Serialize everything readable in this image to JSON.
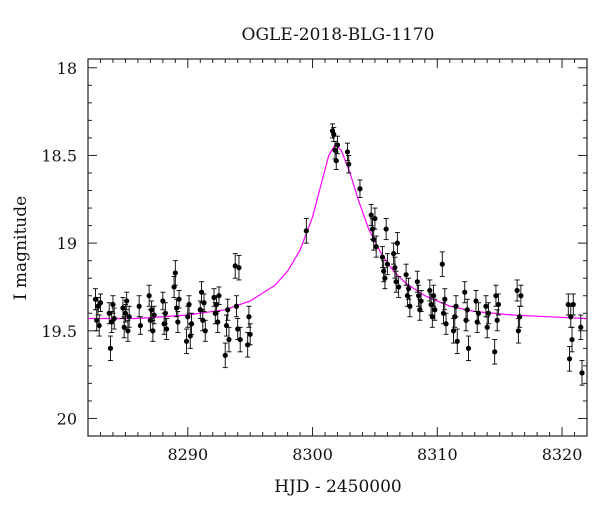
{
  "chart_data": {
    "type": "scatter",
    "title": "OGLE-2018-BLG-1170",
    "xlabel": "HJD - 2450000",
    "ylabel": "I magnitude",
    "xlim": [
      8282,
      8322
    ],
    "ylim": [
      20.1,
      17.95
    ],
    "y_inverted": true,
    "x_ticks": [
      8290,
      8300,
      8310,
      8320
    ],
    "y_ticks": [
      18,
      18.5,
      19,
      19.5,
      20
    ],
    "x_tick_labels": [
      "8290",
      "8300",
      "8310",
      "8320"
    ],
    "y_tick_labels": [
      "18",
      "18.5",
      "19",
      "19.5",
      "20"
    ],
    "grid": false,
    "colors": {
      "points": "#000000",
      "model": "#ff00ff"
    },
    "model": {
      "baseline": 19.43,
      "peak_time": 8301.8,
      "peak_mag": 18.44,
      "x": [
        8282,
        8286,
        8290,
        8293,
        8295,
        8297,
        8298,
        8299,
        8300,
        8300.7,
        8301.3,
        8301.8,
        8302.3,
        8303,
        8303.7,
        8304.5,
        8305.5,
        8306.5,
        8307.5,
        8309,
        8311,
        8313,
        8316,
        8319,
        8322
      ],
      "y": [
        19.43,
        19.43,
        19.41,
        19.38,
        19.33,
        19.24,
        19.16,
        19.04,
        18.85,
        18.66,
        18.5,
        18.44,
        18.47,
        18.6,
        18.76,
        18.92,
        19.06,
        19.16,
        19.23,
        19.3,
        19.36,
        19.39,
        19.41,
        19.42,
        19.43
      ]
    },
    "points": [
      {
        "x": 8282.6,
        "y": 19.32,
        "err": 0.06
      },
      {
        "x": 8282.7,
        "y": 19.44,
        "err": 0.06
      },
      {
        "x": 8282.8,
        "y": 19.36,
        "err": 0.05
      },
      {
        "x": 8282.9,
        "y": 19.47,
        "err": 0.06
      },
      {
        "x": 8283.0,
        "y": 19.34,
        "err": 0.05
      },
      {
        "x": 8283.7,
        "y": 19.4,
        "err": 0.06
      },
      {
        "x": 8283.8,
        "y": 19.6,
        "err": 0.07
      },
      {
        "x": 8283.9,
        "y": 19.45,
        "err": 0.06
      },
      {
        "x": 8284.0,
        "y": 19.35,
        "err": 0.05
      },
      {
        "x": 8284.1,
        "y": 19.43,
        "err": 0.06
      },
      {
        "x": 8284.8,
        "y": 19.37,
        "err": 0.06
      },
      {
        "x": 8284.9,
        "y": 19.48,
        "err": 0.06
      },
      {
        "x": 8285.0,
        "y": 19.4,
        "err": 0.05
      },
      {
        "x": 8285.1,
        "y": 19.33,
        "err": 0.05
      },
      {
        "x": 8285.2,
        "y": 19.5,
        "err": 0.06
      },
      {
        "x": 8285.3,
        "y": 19.42,
        "err": 0.06
      },
      {
        "x": 8286.1,
        "y": 19.36,
        "err": 0.06
      },
      {
        "x": 8286.2,
        "y": 19.47,
        "err": 0.05
      },
      {
        "x": 8286.9,
        "y": 19.3,
        "err": 0.06
      },
      {
        "x": 8287.0,
        "y": 19.44,
        "err": 0.06
      },
      {
        "x": 8287.1,
        "y": 19.38,
        "err": 0.05
      },
      {
        "x": 8287.2,
        "y": 19.5,
        "err": 0.06
      },
      {
        "x": 8287.3,
        "y": 19.41,
        "err": 0.05
      },
      {
        "x": 8288.0,
        "y": 19.33,
        "err": 0.05
      },
      {
        "x": 8288.1,
        "y": 19.46,
        "err": 0.06
      },
      {
        "x": 8288.2,
        "y": 19.4,
        "err": 0.06
      },
      {
        "x": 8288.3,
        "y": 19.49,
        "err": 0.06
      },
      {
        "x": 8288.9,
        "y": 19.25,
        "err": 0.06
      },
      {
        "x": 8289.0,
        "y": 19.17,
        "err": 0.07
      },
      {
        "x": 8289.1,
        "y": 19.37,
        "err": 0.05
      },
      {
        "x": 8289.2,
        "y": 19.45,
        "err": 0.06
      },
      {
        "x": 8289.3,
        "y": 19.32,
        "err": 0.05
      },
      {
        "x": 8289.9,
        "y": 19.56,
        "err": 0.07
      },
      {
        "x": 8290.0,
        "y": 19.42,
        "err": 0.06
      },
      {
        "x": 8290.1,
        "y": 19.35,
        "err": 0.05
      },
      {
        "x": 8290.2,
        "y": 19.53,
        "err": 0.07
      },
      {
        "x": 8290.3,
        "y": 19.46,
        "err": 0.06
      },
      {
        "x": 8291.0,
        "y": 19.38,
        "err": 0.05
      },
      {
        "x": 8291.1,
        "y": 19.28,
        "err": 0.06
      },
      {
        "x": 8291.2,
        "y": 19.44,
        "err": 0.06
      },
      {
        "x": 8291.3,
        "y": 19.34,
        "err": 0.05
      },
      {
        "x": 8291.4,
        "y": 19.5,
        "err": 0.06
      },
      {
        "x": 8292.1,
        "y": 19.31,
        "err": 0.05
      },
      {
        "x": 8292.2,
        "y": 19.4,
        "err": 0.06
      },
      {
        "x": 8292.3,
        "y": 19.35,
        "err": 0.05
      },
      {
        "x": 8292.4,
        "y": 19.45,
        "err": 0.06
      },
      {
        "x": 8292.5,
        "y": 19.3,
        "err": 0.05
      },
      {
        "x": 8293.0,
        "y": 19.64,
        "err": 0.07
      },
      {
        "x": 8293.1,
        "y": 19.47,
        "err": 0.06
      },
      {
        "x": 8293.2,
        "y": 19.38,
        "err": 0.06
      },
      {
        "x": 8293.3,
        "y": 19.55,
        "err": 0.07
      },
      {
        "x": 8293.8,
        "y": 19.13,
        "err": 0.07
      },
      {
        "x": 8293.9,
        "y": 19.36,
        "err": 0.06
      },
      {
        "x": 8294.0,
        "y": 19.49,
        "err": 0.06
      },
      {
        "x": 8294.1,
        "y": 19.14,
        "err": 0.07
      },
      {
        "x": 8294.2,
        "y": 19.55,
        "err": 0.07
      },
      {
        "x": 8294.8,
        "y": 19.58,
        "err": 0.07
      },
      {
        "x": 8294.9,
        "y": 19.42,
        "err": 0.06
      },
      {
        "x": 8295.0,
        "y": 19.52,
        "err": 0.06
      },
      {
        "x": 8299.5,
        "y": 18.93,
        "err": 0.07
      },
      {
        "x": 8301.6,
        "y": 18.36,
        "err": 0.04
      },
      {
        "x": 8301.7,
        "y": 18.38,
        "err": 0.04
      },
      {
        "x": 8301.8,
        "y": 18.47,
        "err": 0.05
      },
      {
        "x": 8301.9,
        "y": 18.53,
        "err": 0.05
      },
      {
        "x": 8302.0,
        "y": 18.44,
        "err": 0.05
      },
      {
        "x": 8302.8,
        "y": 18.48,
        "err": 0.05
      },
      {
        "x": 8302.9,
        "y": 18.55,
        "err": 0.05
      },
      {
        "x": 8303.8,
        "y": 18.69,
        "err": 0.05
      },
      {
        "x": 8304.7,
        "y": 18.84,
        "err": 0.06
      },
      {
        "x": 8304.8,
        "y": 18.92,
        "err": 0.06
      },
      {
        "x": 8304.9,
        "y": 18.98,
        "err": 0.06
      },
      {
        "x": 8305.0,
        "y": 18.86,
        "err": 0.06
      },
      {
        "x": 8305.1,
        "y": 19.02,
        "err": 0.06
      },
      {
        "x": 8305.6,
        "y": 19.08,
        "err": 0.06
      },
      {
        "x": 8305.7,
        "y": 19.16,
        "err": 0.06
      },
      {
        "x": 8305.8,
        "y": 19.2,
        "err": 0.06
      },
      {
        "x": 8305.9,
        "y": 18.92,
        "err": 0.06
      },
      {
        "x": 8306.0,
        "y": 19.12,
        "err": 0.06
      },
      {
        "x": 8306.5,
        "y": 19.06,
        "err": 0.06
      },
      {
        "x": 8306.6,
        "y": 19.14,
        "err": 0.06
      },
      {
        "x": 8306.7,
        "y": 19.22,
        "err": 0.06
      },
      {
        "x": 8306.8,
        "y": 19.0,
        "err": 0.06
      },
      {
        "x": 8306.9,
        "y": 19.25,
        "err": 0.06
      },
      {
        "x": 8307.5,
        "y": 19.18,
        "err": 0.06
      },
      {
        "x": 8307.6,
        "y": 19.3,
        "err": 0.06
      },
      {
        "x": 8307.7,
        "y": 19.26,
        "err": 0.06
      },
      {
        "x": 8307.8,
        "y": 19.36,
        "err": 0.06
      },
      {
        "x": 8308.4,
        "y": 19.22,
        "err": 0.06
      },
      {
        "x": 8308.5,
        "y": 19.3,
        "err": 0.06
      },
      {
        "x": 8308.6,
        "y": 19.38,
        "err": 0.06
      },
      {
        "x": 8308.7,
        "y": 19.33,
        "err": 0.06
      },
      {
        "x": 8309.4,
        "y": 19.27,
        "err": 0.06
      },
      {
        "x": 8309.5,
        "y": 19.35,
        "err": 0.06
      },
      {
        "x": 8309.6,
        "y": 19.42,
        "err": 0.06
      },
      {
        "x": 8309.7,
        "y": 19.3,
        "err": 0.06
      },
      {
        "x": 8309.8,
        "y": 19.38,
        "err": 0.06
      },
      {
        "x": 8310.4,
        "y": 19.12,
        "err": 0.07
      },
      {
        "x": 8310.5,
        "y": 19.4,
        "err": 0.06
      },
      {
        "x": 8310.6,
        "y": 19.32,
        "err": 0.06
      },
      {
        "x": 8310.7,
        "y": 19.46,
        "err": 0.06
      },
      {
        "x": 8311.3,
        "y": 19.5,
        "err": 0.07
      },
      {
        "x": 8311.4,
        "y": 19.42,
        "err": 0.06
      },
      {
        "x": 8311.5,
        "y": 19.36,
        "err": 0.06
      },
      {
        "x": 8311.6,
        "y": 19.56,
        "err": 0.07
      },
      {
        "x": 8312.2,
        "y": 19.28,
        "err": 0.06
      },
      {
        "x": 8312.3,
        "y": 19.44,
        "err": 0.06
      },
      {
        "x": 8312.4,
        "y": 19.38,
        "err": 0.06
      },
      {
        "x": 8312.5,
        "y": 19.6,
        "err": 0.07
      },
      {
        "x": 8313.1,
        "y": 19.33,
        "err": 0.06
      },
      {
        "x": 8313.2,
        "y": 19.45,
        "err": 0.06
      },
      {
        "x": 8313.3,
        "y": 19.4,
        "err": 0.06
      },
      {
        "x": 8313.9,
        "y": 19.36,
        "err": 0.06
      },
      {
        "x": 8314.0,
        "y": 19.48,
        "err": 0.06
      },
      {
        "x": 8314.1,
        "y": 19.4,
        "err": 0.06
      },
      {
        "x": 8314.6,
        "y": 19.62,
        "err": 0.07
      },
      {
        "x": 8314.7,
        "y": 19.3,
        "err": 0.06
      },
      {
        "x": 8314.8,
        "y": 19.44,
        "err": 0.06
      },
      {
        "x": 8314.9,
        "y": 19.35,
        "err": 0.06
      },
      {
        "x": 8316.4,
        "y": 19.27,
        "err": 0.06
      },
      {
        "x": 8316.5,
        "y": 19.5,
        "err": 0.07
      },
      {
        "x": 8316.6,
        "y": 19.42,
        "err": 0.06
      },
      {
        "x": 8316.7,
        "y": 19.3,
        "err": 0.06
      },
      {
        "x": 8320.5,
        "y": 19.35,
        "err": 0.06
      },
      {
        "x": 8320.6,
        "y": 19.66,
        "err": 0.07
      },
      {
        "x": 8320.7,
        "y": 19.42,
        "err": 0.06
      },
      {
        "x": 8320.8,
        "y": 19.55,
        "err": 0.07
      },
      {
        "x": 8320.9,
        "y": 19.35,
        "err": 0.06
      },
      {
        "x": 8321.5,
        "y": 19.48,
        "err": 0.07
      },
      {
        "x": 8321.6,
        "y": 19.74,
        "err": 0.07
      }
    ]
  }
}
